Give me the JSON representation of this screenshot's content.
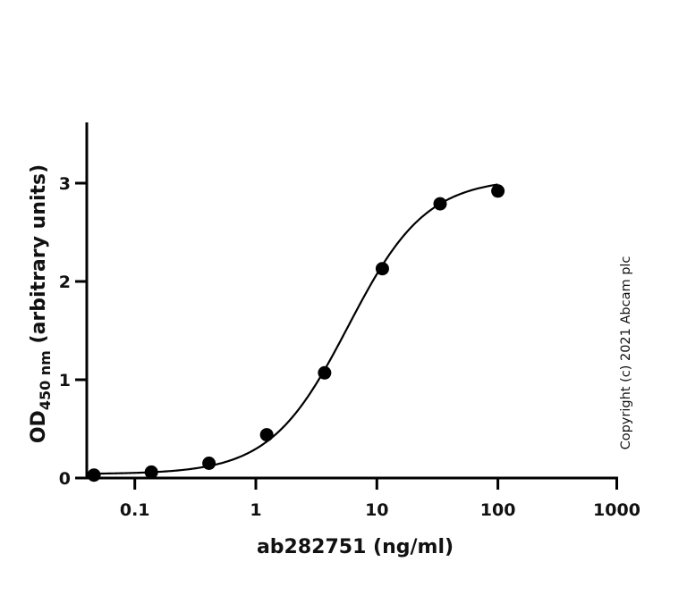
{
  "chart_data": {
    "type": "scatter",
    "title": "",
    "xlabel": "ab282751 (ng/ml)",
    "ylabel_main": "OD",
    "ylabel_sub": "450 nm",
    "ylabel_rest": " (arbitrary units)",
    "xscale": "log",
    "xlim": [
      0.04,
      1000
    ],
    "ylim": [
      0,
      3.6
    ],
    "x_ticks": [
      0.1,
      1,
      10,
      100,
      1000
    ],
    "x_tick_labels": [
      "0.1",
      "1",
      "10",
      "100",
      "1000"
    ],
    "y_ticks": [
      0,
      1,
      2,
      3
    ],
    "y_tick_labels": [
      "0",
      "1",
      "2",
      "3"
    ],
    "grid": false,
    "legend": null,
    "series": [
      {
        "name": "ab282751",
        "x": [
          0.046,
          0.137,
          0.41,
          1.23,
          3.7,
          11.1,
          33.3,
          100
        ],
        "y": [
          0.03,
          0.06,
          0.15,
          0.44,
          1.07,
          2.13,
          2.79,
          2.92
        ],
        "marker": "filled-circle",
        "color": "#000000"
      }
    ],
    "fit": {
      "type": "4PL",
      "bottom": 0.04,
      "top": 3.05,
      "ec50": 5.8,
      "hill": 1.35,
      "x_range": [
        0.046,
        100
      ]
    },
    "annotations": [
      "Copyright (c) 2021 Abcam plc"
    ]
  },
  "copyright": "Copyright (c) 2021 Abcam plc"
}
